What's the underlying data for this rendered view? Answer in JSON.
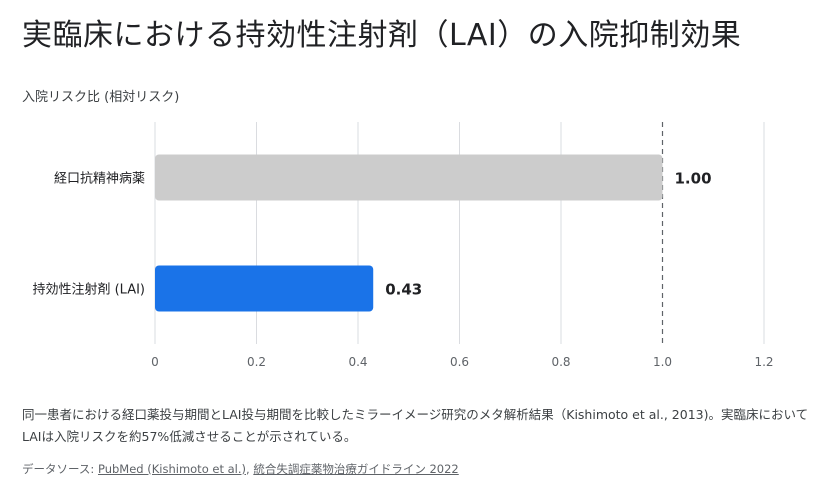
{
  "title": "実臨床における持効性注射剤（LAI）の入院抑制効果",
  "description": "同一患者における経口薬投与期間とLAI投与期間を比較したミラーイメージ研究のメタ解析結果（Kishimoto et al., 2013)。実臨床においてLAIは入院リスクを約57%低減させることが示されている。",
  "source": {
    "label": "データソース: ",
    "link1": "PubMed (Kishimoto et al.)",
    "separator": ", ",
    "link2": "統合失調症薬物治療ガイドライン 2022"
  },
  "colors": {
    "oral": "#cccccc",
    "lai": "#1a73e8",
    "grid": "#dadce0",
    "reference": "#5f6368"
  },
  "chart_data": {
    "type": "bar",
    "orientation": "horizontal",
    "ylabel": "入院リスク比 (相対リスク)",
    "categories": [
      "経口抗精神病薬",
      "持効性注射剤 (LAI)"
    ],
    "values": [
      1.0,
      0.43
    ],
    "value_labels": [
      "1.00",
      "0.43"
    ],
    "xlim": [
      0,
      1.2
    ],
    "xticks": [
      "0",
      "0.2",
      "0.4",
      "0.6",
      "0.8",
      "1.0",
      "1.2"
    ],
    "reference_line": 1.0,
    "grid": true
  }
}
